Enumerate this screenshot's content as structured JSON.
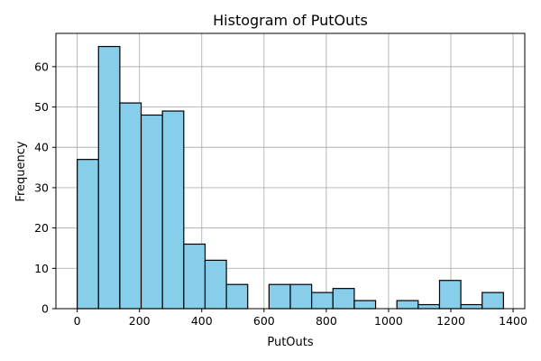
{
  "chart_data": {
    "type": "bar",
    "title": "Histogram of PutOuts",
    "xlabel": "PutOuts",
    "ylabel": "Frequency",
    "bin_width": 68.45,
    "bin_start": 0,
    "values": [
      37,
      65,
      51,
      48,
      49,
      16,
      12,
      6,
      0,
      6,
      6,
      4,
      5,
      2,
      0,
      2,
      1,
      7,
      1,
      4
    ],
    "xlim": [
      -68.45,
      1437.45
    ],
    "ylim": [
      0,
      68.25
    ],
    "xticks": [
      0,
      200,
      400,
      600,
      800,
      1000,
      1200,
      1400
    ],
    "yticks": [
      0,
      10,
      20,
      30,
      40,
      50,
      60
    ],
    "grid": true,
    "colors": {
      "bar_fill": "#87ceeb",
      "bar_edge": "#000000",
      "grid": "#b0b0b0"
    }
  }
}
